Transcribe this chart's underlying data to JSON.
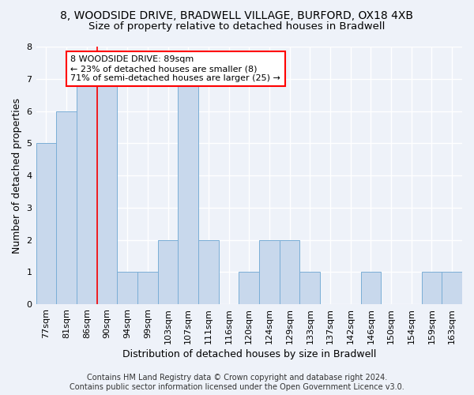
{
  "title_line1": "8, WOODSIDE DRIVE, BRADWELL VILLAGE, BURFORD, OX18 4XB",
  "title_line2": "Size of property relative to detached houses in Bradwell",
  "xlabel": "Distribution of detached houses by size in Bradwell",
  "ylabel": "Number of detached properties",
  "categories": [
    "77sqm",
    "81sqm",
    "86sqm",
    "90sqm",
    "94sqm",
    "99sqm",
    "103sqm",
    "107sqm",
    "111sqm",
    "116sqm",
    "120sqm",
    "124sqm",
    "129sqm",
    "133sqm",
    "137sqm",
    "142sqm",
    "146sqm",
    "150sqm",
    "154sqm",
    "159sqm",
    "163sqm"
  ],
  "values": [
    5,
    6,
    7,
    7,
    1,
    1,
    2,
    7,
    2,
    0,
    1,
    2,
    2,
    1,
    0,
    0,
    1,
    0,
    0,
    1,
    1
  ],
  "bar_color": "#c8d8ec",
  "bar_edge_color": "#7aaed6",
  "red_line_x": 2.5,
  "annotation_text": "8 WOODSIDE DRIVE: 89sqm\n← 23% of detached houses are smaller (8)\n71% of semi-detached houses are larger (25) →",
  "annotation_box_color": "white",
  "annotation_box_edge": "red",
  "ylim": [
    0,
    8
  ],
  "yticks": [
    0,
    1,
    2,
    3,
    4,
    5,
    6,
    7,
    8
  ],
  "footer_line1": "Contains HM Land Registry data © Crown copyright and database right 2024.",
  "footer_line2": "Contains public sector information licensed under the Open Government Licence v3.0.",
  "background_color": "#eef2f9",
  "grid_color": "#ffffff",
  "title_fontsize": 10,
  "subtitle_fontsize": 9.5,
  "axis_label_fontsize": 9,
  "tick_fontsize": 8,
  "annotation_fontsize": 8,
  "footer_fontsize": 7
}
